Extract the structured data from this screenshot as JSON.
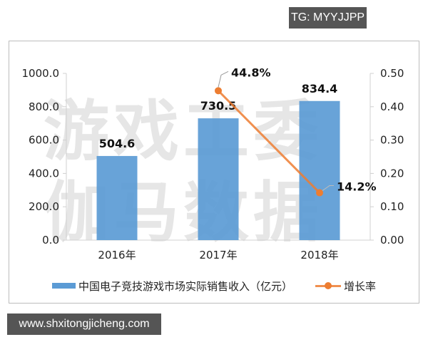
{
  "badges": {
    "top_right": "TG: MYYJJPP",
    "bottom_left": "www.shxitongjicheng.com"
  },
  "watermark": {
    "text_row1": "游戏工委",
    "text_row2": "伽马数据"
  },
  "legend": {
    "bar_label": "中国电子竞技游戏市场实际销售收入（亿元）",
    "line_label": "增长率"
  },
  "colors": {
    "bar": "#5b9bd5",
    "line": "#ed7d31",
    "badge_bg": "#555555"
  },
  "chart_data": {
    "type": "bar",
    "title": "",
    "categories": [
      "2016年",
      "2017年",
      "2018年"
    ],
    "series": [
      {
        "name": "中国电子竞技游戏市场实际销售收入（亿元）",
        "type": "bar",
        "axis": "left",
        "values": [
          504.6,
          730.5,
          834.4
        ],
        "labels": [
          "504.6",
          "730.5",
          "834.4"
        ]
      },
      {
        "name": "增长率",
        "type": "line",
        "axis": "right",
        "values": [
          null,
          0.448,
          0.142
        ],
        "labels": [
          "",
          "44.8%",
          "14.2%"
        ]
      }
    ],
    "left_axis": {
      "ticks": [
        "0.0",
        "200.0",
        "400.0",
        "600.0",
        "800.0",
        "1000.0"
      ],
      "ylim": [
        0,
        1000
      ]
    },
    "right_axis": {
      "ticks": [
        "0.00",
        "0.10",
        "0.20",
        "0.30",
        "0.40",
        "0.50"
      ],
      "ylim": [
        0,
        0.5
      ]
    },
    "xlabel": "",
    "ylabel": "",
    "grid": false,
    "legend_position": "bottom"
  }
}
